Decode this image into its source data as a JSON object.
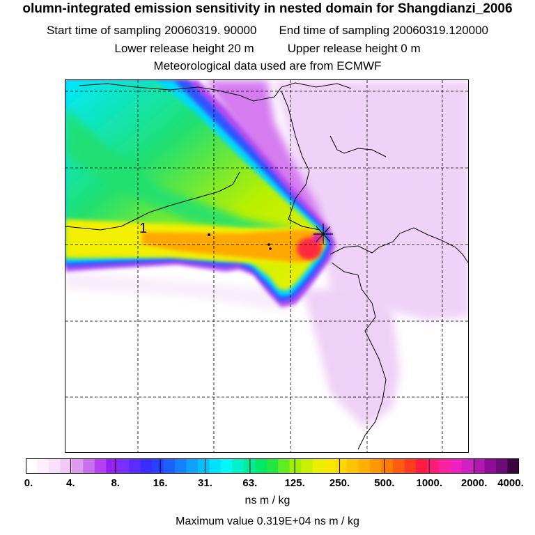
{
  "header": {
    "title": "olumn-integrated emission sensitivity in nested domain for Shangdianzi_2006",
    "start_label": "Start time of sampling 20060319. 90000",
    "end_label": "End time of sampling 20060319.120000",
    "lower_label": "Lower release height   20 m",
    "upper_label": "Upper release height    0 m",
    "met_label": "Meteorological data used are from ECMWF"
  },
  "map": {
    "release_marker_label": "1",
    "colors": {
      "land_outline": "#000000",
      "grid": "#000000",
      "lavender": "#eccaf6",
      "violet": "#d27af0",
      "blue": "#2d4bff",
      "cyan": "#00d8ff",
      "green": "#22e070",
      "yellow": "#f5f000",
      "orange": "#ffa000",
      "red": "#ff3030"
    }
  },
  "colorbar": {
    "ticks": [
      "0.",
      "4.",
      "8.",
      "16.",
      "31.",
      "63.",
      "125.",
      "250.",
      "500.",
      "1000.",
      "2000.",
      "4000."
    ],
    "colors": [
      "#ffffff",
      "#fdeffd",
      "#f8e0fa",
      "#f2c8f6",
      "#dd9af0",
      "#c96ff0",
      "#b540f0",
      "#9520f0",
      "#7a30ff",
      "#5a2cff",
      "#3b2cff",
      "#2a40ff",
      "#1c5fff",
      "#1580ff",
      "#10a0ff",
      "#00c0ff",
      "#00e0ff",
      "#00f8f8",
      "#00f0c8",
      "#00ec98",
      "#00e868",
      "#20e840",
      "#60ec20",
      "#a0f000",
      "#c8f000",
      "#e8f000",
      "#f8e800",
      "#ffd800",
      "#ffc400",
      "#ffb000",
      "#ff9800",
      "#ff7c00",
      "#ff5c10",
      "#ff3c20",
      "#ff1c40",
      "#ff1c78",
      "#ff20a0",
      "#f020c0",
      "#d020c0",
      "#b018b0",
      "#900c98",
      "#6c0a78",
      "#3a0440"
    ],
    "unit": "ns m / kg",
    "max_value": "Maximum value  0.319E+04 ns m / kg"
  }
}
